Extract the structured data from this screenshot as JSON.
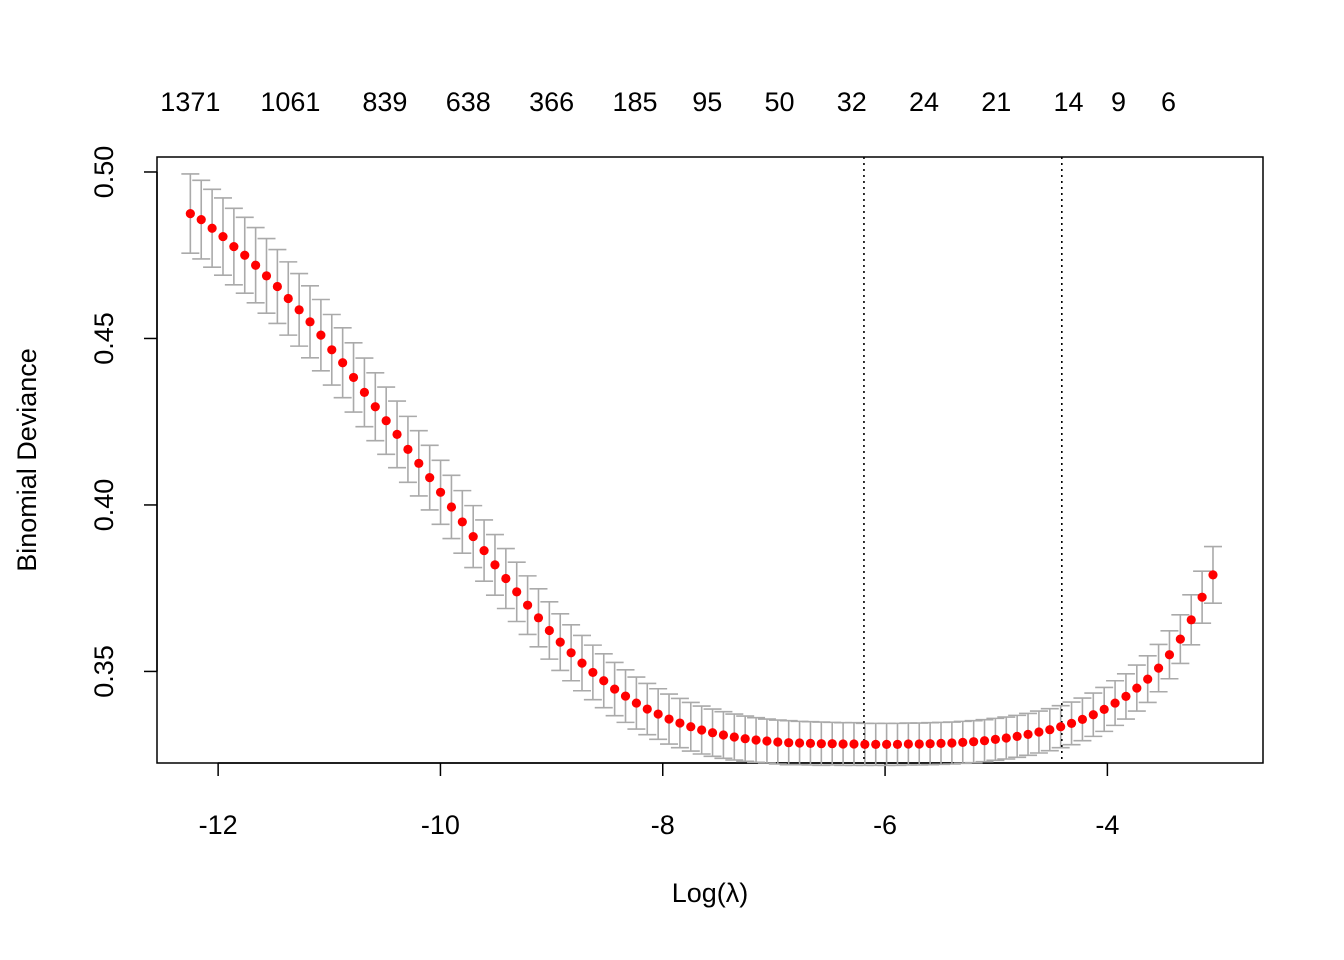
{
  "chart_data": {
    "type": "scatter",
    "title": "",
    "xlabel": "Log(λ)",
    "ylabel": "Binomial Deviance",
    "xlim": [
      -12.55,
      -2.6
    ],
    "ylim": [
      0.3225,
      0.5045
    ],
    "x_ticks": [
      {
        "value": -12,
        "label": "-12"
      },
      {
        "value": -10,
        "label": "-10"
      },
      {
        "value": -8,
        "label": "-8"
      },
      {
        "value": -6,
        "label": "-6"
      },
      {
        "value": -4,
        "label": "-4"
      }
    ],
    "y_ticks": [
      {
        "value": 0.35,
        "label": "0.35"
      },
      {
        "value": 0.4,
        "label": "0.40"
      },
      {
        "value": 0.45,
        "label": "0.45"
      },
      {
        "value": 0.5,
        "label": "0.50"
      }
    ],
    "top_axis": [
      {
        "x": -12.25,
        "label": "1371"
      },
      {
        "x": -11.35,
        "label": "1061"
      },
      {
        "x": -10.5,
        "label": "839"
      },
      {
        "x": -9.75,
        "label": "638"
      },
      {
        "x": -9.0,
        "label": "366"
      },
      {
        "x": -8.25,
        "label": "185"
      },
      {
        "x": -7.6,
        "label": "95"
      },
      {
        "x": -6.95,
        "label": "50"
      },
      {
        "x": -6.3,
        "label": "32"
      },
      {
        "x": -5.65,
        "label": "24"
      },
      {
        "x": -5.0,
        "label": "21"
      },
      {
        "x": -4.35,
        "label": "14"
      },
      {
        "x": -3.9,
        "label": "9"
      },
      {
        "x": -3.45,
        "label": "6"
      }
    ],
    "vlines": [
      {
        "x": -6.19,
        "name": "lambda.min"
      },
      {
        "x": -4.41,
        "name": "lambda.1se"
      }
    ],
    "x_start": -12.25,
    "x_end": -3.05,
    "y": [
      0.4875,
      0.4857,
      0.4831,
      0.4806,
      0.4776,
      0.475,
      0.472,
      0.4688,
      0.4656,
      0.462,
      0.4586,
      0.455,
      0.451,
      0.4466,
      0.4427,
      0.4383,
      0.4338,
      0.4295,
      0.4253,
      0.4212,
      0.4167,
      0.4125,
      0.4082,
      0.4038,
      0.3994,
      0.3949,
      0.3905,
      0.3863,
      0.382,
      0.3779,
      0.3739,
      0.3699,
      0.3661,
      0.3623,
      0.3588,
      0.3556,
      0.3525,
      0.3497,
      0.3472,
      0.3447,
      0.3426,
      0.3405,
      0.3387,
      0.3372,
      0.3357,
      0.3345,
      0.3334,
      0.3324,
      0.3316,
      0.3309,
      0.3303,
      0.3298,
      0.3294,
      0.3291,
      0.3288,
      0.3286,
      0.3285,
      0.3284,
      0.3283,
      0.3283,
      0.3282,
      0.3282,
      0.3281,
      0.3281,
      0.3281,
      0.3281,
      0.3282,
      0.3282,
      0.3283,
      0.3284,
      0.3285,
      0.3287,
      0.3289,
      0.3292,
      0.3296,
      0.33,
      0.3305,
      0.3311,
      0.3318,
      0.3325,
      0.3334,
      0.3344,
      0.3356,
      0.337,
      0.3386,
      0.3405,
      0.3425,
      0.345,
      0.3477,
      0.351,
      0.355,
      0.3597,
      0.3655,
      0.3723,
      0.379
    ],
    "se": [
      0.0119,
      0.0118,
      0.0117,
      0.0116,
      0.0115,
      0.0114,
      0.0113,
      0.0112,
      0.0111,
      0.011,
      0.0109,
      0.0108,
      0.0107,
      0.0106,
      0.0105,
      0.0104,
      0.0103,
      0.0102,
      0.0101,
      0.01,
      0.0099,
      0.0098,
      0.0097,
      0.0096,
      0.0095,
      0.0094,
      0.0093,
      0.0092,
      0.0091,
      0.009,
      0.0089,
      0.0088,
      0.0087,
      0.0086,
      0.0085,
      0.0084,
      0.0083,
      0.0082,
      0.0081,
      0.008,
      0.0079,
      0.0078,
      0.0077,
      0.0076,
      0.0075,
      0.0074,
      0.0073,
      0.0072,
      0.0071,
      0.007,
      0.0069,
      0.0068,
      0.0067,
      0.0066,
      0.0066,
      0.0066,
      0.0065,
      0.0065,
      0.0065,
      0.0064,
      0.0064,
      0.0064,
      0.0063,
      0.0063,
      0.0063,
      0.0063,
      0.0063,
      0.0063,
      0.0063,
      0.0063,
      0.0063,
      0.0063,
      0.0063,
      0.0063,
      0.0063,
      0.0063,
      0.0063,
      0.0063,
      0.0063,
      0.0063,
      0.0063,
      0.0064,
      0.0064,
      0.0065,
      0.0066,
      0.0067,
      0.0068,
      0.0069,
      0.007,
      0.0071,
      0.0072,
      0.0073,
      0.0075,
      0.0078,
      0.0085
    ],
    "colors": {
      "point": "#ff0000",
      "errorbar": "#aaaaaa",
      "vline": "#000000",
      "frame": "#000000"
    },
    "grid": false,
    "legend": "none"
  }
}
